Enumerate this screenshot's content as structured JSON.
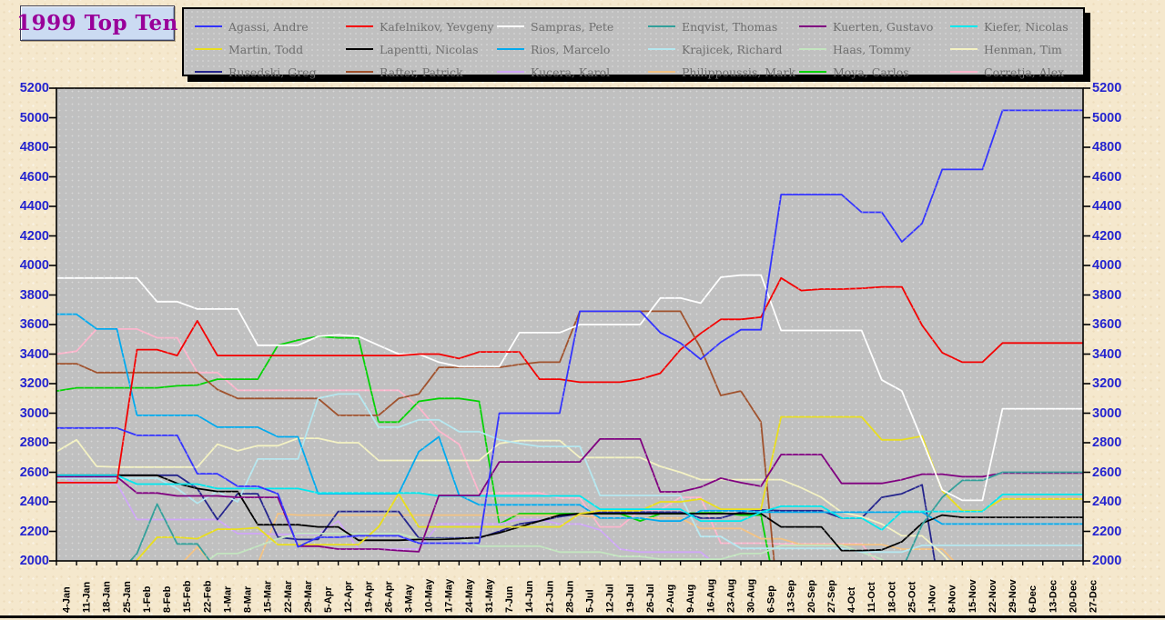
{
  "title": "1999 Top Ten",
  "colors": {
    "page_bg": "#f5e8cd",
    "plot_bg": "#c0c0c0",
    "legend_bg": "#c0c0c0",
    "legend_text": "#6e6e6e",
    "title_text": "#990099",
    "title_bg": "#cbdbf2",
    "y_axis_labels": "#2424cf",
    "x_axis_labels": "#000000"
  },
  "chart_data": {
    "type": "line",
    "title": "1999 Top Ten",
    "xlabel": "",
    "ylabel": "",
    "ylim": [
      2000,
      5200
    ],
    "y_tick_step": 200,
    "grid": false,
    "legend_position": "top",
    "x_labels": [
      "4-Jan",
      "11-Jan",
      "18-Jan",
      "25-Jan",
      "1-Feb",
      "8-Feb",
      "15-Feb",
      "22-Feb",
      "1-Mar",
      "8-Mar",
      "15-Mar",
      "22-Mar",
      "29-Mar",
      "5-Apr",
      "12-Apr",
      "19-Apr",
      "26-Apr",
      "3-May",
      "10-May",
      "17-May",
      "24-May",
      "31-May",
      "7-Jun",
      "14-Jun",
      "21-Jun",
      "28-Jun",
      "5-Jul",
      "12-Jul",
      "19-Jul",
      "26-Jul",
      "2-Aug",
      "9-Aug",
      "16-Aug",
      "23-Aug",
      "30-Aug",
      "6-Sep",
      "13-Sep",
      "20-Sep",
      "27-Sep",
      "4-Oct",
      "11-Oct",
      "18-Oct",
      "25-Oct",
      "1-Nov",
      "8-Nov",
      "15-Nov",
      "22-Nov",
      "29-Nov",
      "6-Dec",
      "13-Dec",
      "20-Dec",
      "27-Dec"
    ],
    "series": [
      {
        "name": "Agassi, Andre",
        "color": "#3333ff",
        "values": [
          2900,
          2900,
          2900,
          2900,
          2850,
          2850,
          2850,
          2590,
          2590,
          2505,
          2505,
          2455,
          2095,
          2160,
          2160,
          2170,
          2170,
          2170,
          2120,
          2120,
          2120,
          2120,
          3000,
          3000,
          3000,
          3000,
          3690,
          3690,
          3690,
          3690,
          3545,
          3475,
          3365,
          3480,
          3565,
          3565,
          4480,
          4480,
          4480,
          4480,
          4360,
          4360,
          4160,
          4285,
          4650,
          4650,
          4650,
          5050,
          5050,
          5050,
          5050,
          5050
        ]
      },
      {
        "name": "Kafelnikov, Yevgeny",
        "color": "#f40000",
        "values": [
          2530,
          2530,
          2530,
          2530,
          3430,
          3430,
          3390,
          3625,
          3390,
          3390,
          3390,
          3390,
          3390,
          3390,
          3390,
          3390,
          3390,
          3390,
          3400,
          3400,
          3370,
          3415,
          3415,
          3415,
          3230,
          3230,
          3210,
          3210,
          3210,
          3230,
          3270,
          3430,
          3540,
          3635,
          3635,
          3650,
          3915,
          3830,
          3840,
          3840,
          3845,
          3855,
          3855,
          3595,
          3410,
          3345,
          3345,
          3475,
          3475,
          3475,
          3475,
          3475
        ]
      },
      {
        "name": "Sampras, Pete",
        "color": "#ffffff",
        "values": [
          3915,
          3915,
          3915,
          3915,
          3915,
          3755,
          3755,
          3705,
          3705,
          3705,
          3460,
          3460,
          3460,
          3520,
          3530,
          3520,
          3460,
          3400,
          3400,
          3345,
          3315,
          3315,
          3315,
          3545,
          3545,
          3545,
          3600,
          3600,
          3600,
          3600,
          3780,
          3780,
          3745,
          3920,
          3935,
          3935,
          3560,
          3560,
          3560,
          3560,
          3560,
          3225,
          3150,
          2820,
          2480,
          2410,
          2410,
          3030,
          3030,
          3030,
          3030,
          3030
        ]
      },
      {
        "name": "Enqvist, Thomas",
        "color": "#33a09a",
        "values": [
          null,
          null,
          null,
          1900,
          2050,
          2385,
          2115,
          2115,
          1930,
          null,
          null,
          null,
          null,
          null,
          null,
          null,
          null,
          null,
          null,
          null,
          null,
          null,
          null,
          null,
          null,
          null,
          null,
          null,
          null,
          null,
          null,
          null,
          null,
          null,
          null,
          null,
          null,
          null,
          null,
          null,
          null,
          null,
          1940,
          2245,
          2430,
          2545,
          2545,
          2600,
          2600,
          2600,
          2600,
          2600
        ]
      },
      {
        "name": "Kuerten, Gustavo",
        "color": "#800080",
        "values": [
          2570,
          2570,
          2570,
          2570,
          2460,
          2460,
          2440,
          2440,
          2440,
          2430,
          2430,
          2430,
          2100,
          2100,
          2080,
          2080,
          2080,
          2070,
          2062,
          2443,
          2443,
          2443,
          2670,
          2670,
          2670,
          2670,
          2670,
          2825,
          2825,
          2825,
          2468,
          2468,
          2500,
          2560,
          2530,
          2505,
          2720,
          2720,
          2720,
          2525,
          2525,
          2525,
          2550,
          2587,
          2587,
          2570,
          2570,
          2595,
          2595,
          2595,
          2595,
          2595
        ]
      },
      {
        "name": "Kiefer, Nicolas",
        "color": "#00e8ee",
        "values": [
          2580,
          2580,
          2580,
          2580,
          2520,
          2520,
          2520,
          2520,
          2490,
          2490,
          2490,
          2490,
          2490,
          2460,
          2460,
          2460,
          2460,
          2460,
          2460,
          2440,
          2440,
          2440,
          2440,
          2440,
          2440,
          2440,
          2440,
          2350,
          2350,
          2350,
          2350,
          2350,
          2270,
          2270,
          2270,
          2330,
          2370,
          2370,
          2370,
          2290,
          2290,
          2210,
          2335,
          2335,
          2335,
          2335,
          2335,
          2450,
          2450,
          2450,
          2450,
          2450
        ]
      },
      {
        "name": "Martin, Todd",
        "color": "#e9de1d",
        "values": [
          null,
          null,
          null,
          1880,
          2005,
          2160,
          2160,
          2150,
          2215,
          2215,
          2225,
          2110,
          2110,
          2110,
          2110,
          2110,
          2230,
          2455,
          2230,
          2230,
          2230,
          2230,
          2230,
          2230,
          2230,
          2230,
          2320,
          2340,
          2340,
          2340,
          2400,
          2400,
          2420,
          2350,
          2350,
          2350,
          2975,
          2975,
          2975,
          2975,
          2975,
          2820,
          2820,
          2845,
          2475,
          2340,
          2340,
          2420,
          2420,
          2420,
          2420,
          2420
        ]
      },
      {
        "name": "Lapentti, Nicolas",
        "color": "#000000",
        "values": [
          2580,
          2580,
          2580,
          2580,
          2580,
          2580,
          2525,
          2490,
          2470,
          2470,
          2245,
          2245,
          2245,
          2230,
          2230,
          2140,
          2140,
          2140,
          2145,
          2145,
          2150,
          2160,
          2190,
          2230,
          2270,
          2310,
          2320,
          2320,
          2320,
          2320,
          2320,
          2320,
          2320,
          2320,
          2320,
          2320,
          2230,
          2230,
          2230,
          2070,
          2070,
          2075,
          2130,
          2255,
          2310,
          2295,
          2295,
          2295,
          2295,
          2295,
          2295,
          2295
        ]
      },
      {
        "name": "Rios, Marcelo",
        "color": "#00aaee",
        "values": [
          3670,
          3670,
          3570,
          3570,
          2985,
          2985,
          2985,
          2985,
          2905,
          2905,
          2905,
          2840,
          2840,
          2455,
          2455,
          2455,
          2455,
          2455,
          2740,
          2840,
          2445,
          2380,
          2380,
          2380,
          2380,
          2380,
          2380,
          2290,
          2290,
          2290,
          2270,
          2270,
          2340,
          2340,
          2340,
          2330,
          2330,
          2330,
          2330,
          2330,
          2330,
          2330,
          2330,
          2330,
          2250,
          2250,
          2250,
          2250,
          2250,
          2250,
          2250,
          2250
        ]
      },
      {
        "name": "Krajicek, Richard",
        "color": "#b5e7ef",
        "values": [
          2560,
          2560,
          2560,
          2560,
          2560,
          2560,
          2490,
          2390,
          2470,
          2400,
          2690,
          2690,
          2690,
          3100,
          3130,
          3130,
          2905,
          2905,
          2955,
          2955,
          2875,
          2875,
          2820,
          2795,
          2775,
          2775,
          2775,
          2443,
          2443,
          2443,
          2443,
          2443,
          2165,
          2165,
          2085,
          2085,
          2085,
          2085,
          2085,
          2085,
          2060,
          2060,
          2060,
          2105,
          2105,
          2105,
          2105,
          2105,
          2105,
          2105,
          2105,
          2105
        ]
      },
      {
        "name": "Haas, Tommy",
        "color": "#c3e5bf",
        "values": [
          null,
          null,
          null,
          null,
          null,
          null,
          null,
          1950,
          2050,
          2050,
          2100,
          2150,
          2185,
          2185,
          2185,
          2185,
          2185,
          2185,
          2150,
          2150,
          2150,
          2100,
          2100,
          2100,
          2100,
          2060,
          2060,
          2060,
          2030,
          2030,
          2012,
          2012,
          2012,
          2012,
          2050,
          2050,
          2105,
          2105,
          2105,
          2105,
          2060,
          2010,
          1930,
          null,
          null,
          null,
          null,
          null,
          null,
          null,
          null,
          null
        ]
      },
      {
        "name": "Henman, Tim",
        "color": "#f4f2c2",
        "values": [
          2740,
          2820,
          2640,
          2635,
          2635,
          2635,
          2635,
          2635,
          2790,
          2745,
          2780,
          2780,
          2830,
          2830,
          2800,
          2800,
          2680,
          2680,
          2680,
          2680,
          2680,
          2680,
          2795,
          2815,
          2815,
          2815,
          2700,
          2700,
          2700,
          2700,
          2640,
          2600,
          2550,
          2550,
          2550,
          2550,
          2550,
          2495,
          2430,
          2330,
          2300,
          2250,
          2170,
          2170,
          2050,
          1900,
          null,
          null,
          null,
          null,
          null,
          null
        ]
      },
      {
        "name": "Rusedski, Greg",
        "color": "#24248c",
        "values": [
          2580,
          2580,
          2580,
          2580,
          2580,
          2580,
          2580,
          2490,
          2280,
          2455,
          2455,
          2160,
          2145,
          2145,
          2335,
          2335,
          2335,
          2335,
          2155,
          2155,
          2155,
          2155,
          2200,
          2250,
          2270,
          2300,
          2320,
          2330,
          2330,
          2330,
          2330,
          2330,
          2290,
          2290,
          2330,
          2345,
          2340,
          2340,
          2340,
          2290,
          2290,
          2430,
          2455,
          2515,
          1700,
          null,
          null,
          null,
          null,
          null,
          null,
          null
        ]
      },
      {
        "name": "Rafter, Patrick",
        "color": "#a0522d",
        "values": [
          3335,
          3335,
          3275,
          3275,
          3275,
          3275,
          3275,
          3275,
          3160,
          3100,
          3100,
          3100,
          3100,
          3100,
          2985,
          2985,
          2985,
          3100,
          3130,
          3310,
          3310,
          3310,
          3310,
          3330,
          3345,
          3345,
          3690,
          3690,
          3690,
          3690,
          3690,
          3690,
          3440,
          3120,
          3150,
          2940,
          1500,
          null,
          null,
          null,
          null,
          null,
          null,
          null,
          null,
          null,
          null,
          null,
          null,
          null,
          null,
          null
        ]
      },
      {
        "name": "Kucera, Karol",
        "color": "#cfa6f7",
        "values": [
          2590,
          2525,
          2525,
          2525,
          2280,
          2280,
          2280,
          2280,
          2280,
          2185,
          2185,
          2180,
          2180,
          2180,
          2270,
          2080,
          2080,
          2080,
          2080,
          2250,
          2250,
          2250,
          2250,
          2280,
          2280,
          2250,
          2250,
          2210,
          2080,
          2060,
          2060,
          2060,
          2060,
          1950,
          null,
          null,
          null,
          null,
          null,
          null,
          null,
          null,
          null,
          null,
          null,
          null,
          null,
          null,
          null,
          null,
          null,
          null
        ]
      },
      {
        "name": "Philippoussis, Mark",
        "color": "#f2c283",
        "values": [
          null,
          null,
          null,
          null,
          null,
          null,
          1950,
          2095,
          1940,
          1930,
          1980,
          2320,
          2310,
          2310,
          2310,
          2310,
          2310,
          2310,
          2310,
          2310,
          2310,
          2310,
          2310,
          2310,
          2310,
          2310,
          2310,
          2290,
          2290,
          2290,
          2290,
          2290,
          2220,
          2220,
          2220,
          2150,
          2150,
          2110,
          2110,
          2110,
          2110,
          2110,
          2080,
          2080,
          2080,
          1940,
          null,
          null,
          null,
          null,
          null,
          null
        ]
      },
      {
        "name": "Moya, Carlos",
        "color": "#04d204",
        "values": [
          3150,
          3172,
          3172,
          3172,
          3172,
          3172,
          3185,
          3190,
          3230,
          3230,
          3230,
          3460,
          3495,
          3520,
          3510,
          3510,
          2940,
          2940,
          3080,
          3100,
          3100,
          3080,
          2250,
          2320,
          2320,
          2320,
          2320,
          2320,
          2320,
          2270,
          2320,
          2320,
          2325,
          2325,
          2310,
          2310,
          1600,
          null,
          null,
          null,
          null,
          null,
          null,
          null,
          null,
          null,
          null,
          null,
          null,
          null,
          null,
          null
        ]
      },
      {
        "name": "Corretja, Alex",
        "color": "#fdb6cd",
        "values": [
          3400,
          3420,
          3570,
          3570,
          3570,
          3510,
          3510,
          3275,
          3275,
          3155,
          3155,
          3155,
          3155,
          3155,
          3155,
          3155,
          3155,
          3155,
          3040,
          2880,
          2790,
          2460,
          2460,
          2460,
          2460,
          2425,
          2425,
          2230,
          2230,
          2345,
          2345,
          2430,
          2430,
          2120,
          2120,
          2120,
          2115,
          2115,
          2115,
          2115,
          2115,
          1950,
          null,
          null,
          null,
          null,
          null,
          null,
          null,
          null,
          null,
          null
        ]
      }
    ]
  }
}
